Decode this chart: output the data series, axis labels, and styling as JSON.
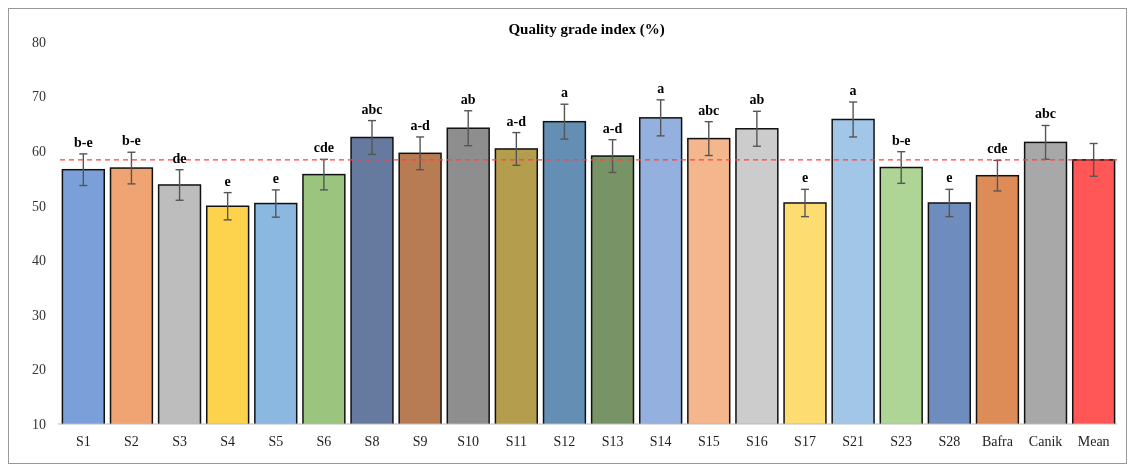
{
  "chart_data": {
    "type": "bar",
    "title": "Quality grade index (%)",
    "categories": [
      "S1",
      "S2",
      "S3",
      "S4",
      "S5",
      "S6",
      "S8",
      "S9",
      "S10",
      "S11",
      "S12",
      "S13",
      "S14",
      "S15",
      "S16",
      "S17",
      "S21",
      "S23",
      "S28",
      "Bafra",
      "Canik",
      "Mean"
    ],
    "values": [
      56.6,
      56.9,
      53.8,
      49.9,
      50.4,
      55.7,
      62.5,
      59.6,
      64.2,
      60.4,
      65.4,
      59.1,
      66.1,
      62.3,
      64.1,
      50.5,
      65.8,
      57.0,
      50.5,
      55.5,
      61.6,
      58.4
    ],
    "errors": [
      2.9,
      2.9,
      2.8,
      2.5,
      2.5,
      2.8,
      3.1,
      3.0,
      3.2,
      3.0,
      3.2,
      3.0,
      3.3,
      3.1,
      3.2,
      2.5,
      3.2,
      2.9,
      2.5,
      2.8,
      3.1,
      3.0
    ],
    "colors": [
      "#7b9fd8",
      "#f0a474",
      "#bdbdbd",
      "#fdd24d",
      "#8bb8e0",
      "#9bc57f",
      "#66799e",
      "#b87c54",
      "#8e8e8e",
      "#b59d4e",
      "#648eb4",
      "#789466",
      "#94b0de",
      "#f4b68c",
      "#cccccc",
      "#fddc72",
      "#a2c6e8",
      "#aed496",
      "#6e8cbd",
      "#de8c57",
      "#a8a8a8",
      "#ff5656"
    ],
    "ylim": [
      10,
      80
    ],
    "yticks": [
      10,
      20,
      30,
      40,
      50,
      60,
      70,
      80
    ],
    "grid": false,
    "ref_lines": [
      {
        "axis": "y",
        "value": 58.4,
        "color": "#ff4040",
        "line_style": "dashed"
      }
    ],
    "annotations": [
      {
        "text": "b-e",
        "x": "S1",
        "y": 59.5
      },
      {
        "text": "b-e",
        "x": "S2",
        "y": 59.8
      },
      {
        "text": "de",
        "x": "S3",
        "y": 56.6
      },
      {
        "text": "e",
        "x": "S4",
        "y": 52.4
      },
      {
        "text": "e",
        "x": "S5",
        "y": 52.9
      },
      {
        "text": "cde",
        "x": "S6",
        "y": 58.5
      },
      {
        "text": "abc",
        "x": "S8",
        "y": 65.6
      },
      {
        "text": "a-d",
        "x": "S9",
        "y": 62.6
      },
      {
        "text": "ab",
        "x": "S10",
        "y": 67.4
      },
      {
        "text": "a-d",
        "x": "S11",
        "y": 63.4
      },
      {
        "text": "a",
        "x": "S12",
        "y": 68.6
      },
      {
        "text": "a-d",
        "x": "S13",
        "y": 62.1
      },
      {
        "text": "a",
        "x": "S14",
        "y": 69.4
      },
      {
        "text": "abc",
        "x": "S15",
        "y": 65.4
      },
      {
        "text": "ab",
        "x": "S16",
        "y": 67.3
      },
      {
        "text": "e",
        "x": "S17",
        "y": 53.0
      },
      {
        "text": "a",
        "x": "S21",
        "y": 69.0
      },
      {
        "text": "b-e",
        "x": "S23",
        "y": 59.9
      },
      {
        "text": "e",
        "x": "S28",
        "y": 53.0
      },
      {
        "text": "cde",
        "x": "Bafra",
        "y": 58.3
      },
      {
        "text": "abc",
        "x": "Canik",
        "y": 64.7
      }
    ]
  }
}
